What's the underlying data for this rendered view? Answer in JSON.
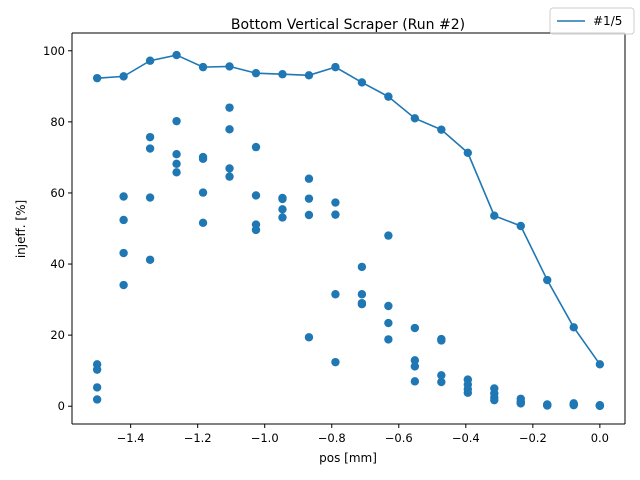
{
  "chart_data": {
    "type": "scatter",
    "title": "Bottom Vertical Scraper (Run #2)",
    "xlabel": "pos [mm]",
    "ylabel": "injeff. [%]",
    "xlim": [
      -1.575,
      0.075
    ],
    "ylim": [
      -5,
      105
    ],
    "x_ticks": [
      -1.4,
      -1.2,
      -1.0,
      -0.8,
      -0.6,
      -0.4,
      -0.2,
      0.0
    ],
    "x_tick_labels": [
      "−1.4",
      "−1.2",
      "−1.0",
      "−0.8",
      "−0.6",
      "−0.4",
      "−0.2",
      "0.0"
    ],
    "y_ticks": [
      0,
      20,
      40,
      60,
      80,
      100
    ],
    "y_tick_labels": [
      "0",
      "20",
      "40",
      "60",
      "80",
      "100"
    ],
    "grid": false,
    "legend_position": "top-right, above axes",
    "color": "#1f77b4",
    "series": [
      {
        "name": "#1/5",
        "kind": "line",
        "x": [
          -1.5,
          -1.421,
          -1.342,
          -1.263,
          -1.184,
          -1.105,
          -1.026,
          -0.947,
          -0.868,
          -0.789,
          -0.71,
          -0.631,
          -0.552,
          -0.473,
          -0.394,
          -0.315,
          -0.236,
          -0.157,
          -0.078,
          0.0
        ],
        "y": [
          92.3,
          92.8,
          97.2,
          98.8,
          95.4,
          95.6,
          93.7,
          93.4,
          93.1,
          95.4,
          91.1,
          87.1,
          81.0,
          77.8,
          71.3,
          53.6,
          50.7,
          35.5,
          22.2,
          11.8
        ]
      },
      {
        "name": "",
        "kind": "scatter",
        "x": [
          -1.5,
          -1.5,
          -1.5,
          -1.5,
          -1.421,
          -1.421,
          -1.421,
          -1.421,
          -1.342,
          -1.342,
          -1.342,
          -1.342,
          -1.263,
          -1.263,
          -1.263,
          -1.263,
          -1.184,
          -1.184,
          -1.184,
          -1.184,
          -1.105,
          -1.105,
          -1.105,
          -1.105,
          -1.026,
          -1.026,
          -1.026,
          -1.026,
          -0.947,
          -0.947,
          -0.947,
          -0.947,
          -0.868,
          -0.868,
          -0.868,
          -0.868,
          -0.789,
          -0.789,
          -0.789,
          -0.789,
          -0.71,
          -0.71,
          -0.71,
          -0.71,
          -0.631,
          -0.631,
          -0.631,
          -0.631,
          -0.552,
          -0.552,
          -0.552,
          -0.552,
          -0.473,
          -0.473,
          -0.473,
          -0.473,
          -0.394,
          -0.394,
          -0.394,
          -0.394,
          -0.315,
          -0.315,
          -0.315,
          -0.315,
          -0.236,
          -0.236,
          -0.236,
          -0.236,
          -0.157,
          -0.157,
          -0.157,
          -0.157,
          -0.078,
          -0.078,
          -0.078,
          -0.078,
          0.0,
          0.0,
          0.0,
          0.0
        ],
        "y": [
          11.8,
          10.3,
          5.3,
          1.9,
          59.0,
          52.4,
          43.1,
          34.1,
          75.7,
          72.5,
          58.7,
          41.2,
          80.2,
          70.9,
          68.2,
          65.8,
          70.1,
          69.6,
          60.1,
          51.6,
          84.0,
          77.9,
          66.9,
          64.6,
          72.9,
          59.3,
          51.1,
          49.6,
          58.6,
          58.3,
          55.4,
          53.1,
          64.0,
          58.4,
          53.8,
          19.4,
          57.3,
          53.9,
          31.5,
          12.4,
          39.2,
          31.5,
          29.0,
          28.7,
          48.0,
          28.2,
          23.4,
          18.8,
          22.0,
          12.9,
          11.2,
          7.0,
          18.9,
          18.5,
          8.7,
          6.8,
          7.5,
          6.1,
          4.8,
          3.8,
          5.0,
          3.6,
          2.5,
          1.7,
          2.1,
          1.3,
          0.9,
          0.8,
          0.5,
          0.4,
          0.3,
          0.2,
          0.8,
          0.6,
          0.4,
          0.3,
          0.3,
          0.2,
          0.2,
          0.1
        ]
      }
    ]
  }
}
